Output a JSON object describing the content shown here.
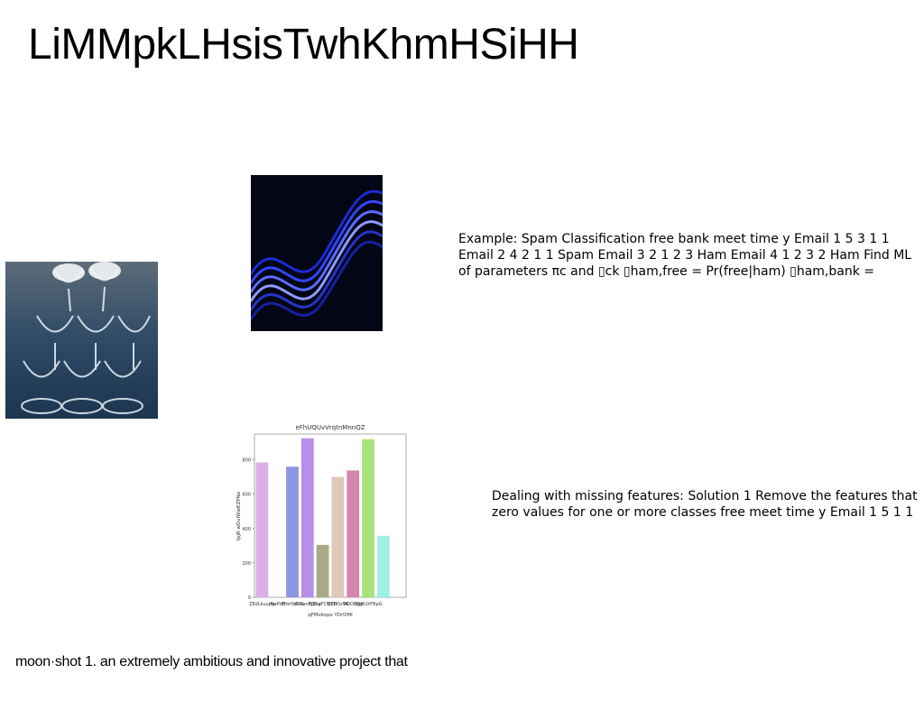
{
  "title": "LiMMpkLHsisTwhKhmHSiHH",
  "text_blocks": {
    "spam": "Example: Spam Classification free bank meet time y Email 1 5 3 1 1 Email 2 4 2 1 1 Spam Email 3 2 1 2 3 Ham Email 4 1 2 3 2 Ham Find ML of parameters πc and ▯ck ▯ham,free = Pr(free|ham) ▯ham,bank =",
    "missing": "Dealing with missing features: Solution 1 Remove the features that zero values for one or more classes free meet time y Email 1 5 1 1",
    "moon": "moon·shot 1. an extremely ambitious and innovative project that"
  },
  "images": {
    "glass": "champagne-glass-tower-photo",
    "wave": "blue-wave-abstract-art"
  },
  "chart_data": {
    "type": "bar",
    "title": "eFhUQUvVrqtnMnnQZ",
    "xlabel": "qFMvkops YDrDMI",
    "ylabel": "fpjR wOxIWwEZPNo",
    "ylim": [
      0,
      950
    ],
    "yticks": [
      0,
      200,
      400,
      600,
      800
    ],
    "categories": [
      "ZEdLkuurty",
      "jAwPoB",
      "PHeHzCIN",
      "WrLantIQCa",
      "EjEayFCMFH",
      "QZBOzV6",
      "NQOHgg",
      "QSHUXFBpG",
      "",
      ""
    ],
    "values": [
      785,
      0,
      760,
      925,
      305,
      700,
      738,
      920,
      358,
      0
    ],
    "colors": [
      "#dbb0e6",
      "#e0b0e0",
      "#8c96e2",
      "#b98de8",
      "#a6ab86",
      "#dfc7b9",
      "#d486af",
      "#a8e37f",
      "#9ef0e3",
      "#ffffff"
    ]
  }
}
